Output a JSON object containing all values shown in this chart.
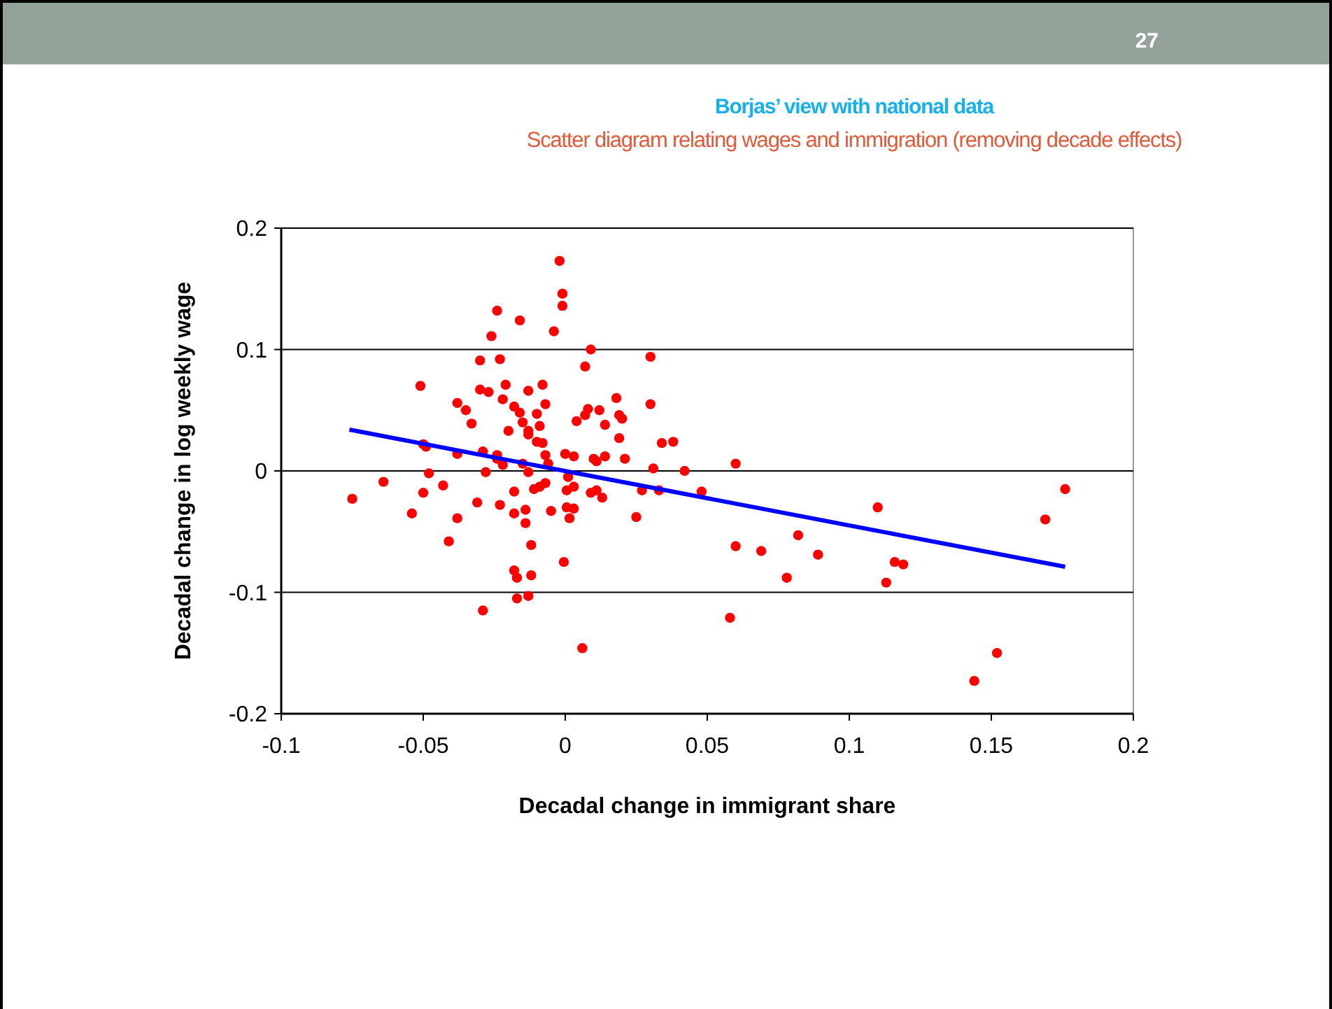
{
  "chart_data": {
    "type": "scatter",
    "title": "Borjas’ view with national data",
    "subtitle": "Scatter diagram relating wages and immigration (removing decade effects)",
    "xlabel": "Decadal change in immigrant share",
    "ylabel": "Decadal change in log weekly wage",
    "annotations": [
      "27"
    ],
    "xlim": [
      -0.1,
      0.2
    ],
    "xticks": [
      -0.1,
      -0.05,
      0,
      0.05,
      0.1,
      0.15,
      0.2
    ],
    "ylim": [
      -0.2,
      0.2
    ],
    "yticks": [
      -0.2,
      -0.1,
      0,
      0.1,
      0.2
    ],
    "grid": "y",
    "series": [
      {
        "type": "scatter",
        "color": "#ff0000",
        "marker": "circle",
        "x": [
          -0.075,
          -0.064,
          -0.054,
          -0.051,
          -0.05,
          -0.05,
          -0.049,
          -0.048,
          -0.043,
          -0.041,
          -0.038,
          -0.038,
          -0.038,
          -0.035,
          -0.033,
          -0.031,
          -0.03,
          -0.03,
          -0.029,
          -0.029,
          -0.028,
          -0.027,
          -0.026,
          -0.024,
          -0.024,
          -0.024,
          -0.023,
          -0.023,
          -0.022,
          -0.022,
          -0.021,
          -0.02,
          -0.018,
          -0.018,
          -0.018,
          -0.018,
          -0.017,
          -0.017,
          -0.016,
          -0.016,
          -0.015,
          -0.015,
          -0.014,
          -0.014,
          -0.013,
          -0.013,
          -0.013,
          -0.013,
          -0.013,
          -0.012,
          -0.012,
          -0.011,
          -0.01,
          -0.01,
          -0.009,
          -0.009,
          -0.008,
          -0.008,
          -0.007,
          -0.007,
          -0.007,
          -0.006,
          -0.005,
          -0.004,
          -0.002,
          -0.001,
          -0.001,
          -0.0005,
          0,
          0.0005,
          0.0005,
          0.001,
          0.0015,
          0.003,
          0.003,
          0.003,
          0.004,
          0.006,
          0.007,
          0.007,
          0.008,
          0.009,
          0.009,
          0.01,
          0.011,
          0.011,
          0.012,
          0.013,
          0.014,
          0.014,
          0.018,
          0.019,
          0.019,
          0.02,
          0.021,
          0.025,
          0.027,
          0.03,
          0.03,
          0.031,
          0.033,
          0.034,
          0.038,
          0.042,
          0.048,
          0.058,
          0.06,
          0.06,
          0.069,
          0.078,
          0.082,
          0.089,
          0.11,
          0.113,
          0.116,
          0.119,
          0.144,
          0.152,
          0.169,
          0.176
        ],
        "values": [
          -0.023,
          -0.009,
          -0.035,
          0.07,
          0.022,
          -0.018,
          0.02,
          -0.002,
          -0.012,
          -0.058,
          0.056,
          0.014,
          -0.039,
          0.05,
          0.039,
          -0.026,
          0.067,
          0.091,
          0.016,
          -0.115,
          -0.001,
          0.065,
          0.111,
          0.132,
          0.013,
          0.01,
          -0.028,
          0.092,
          0.059,
          0.005,
          0.071,
          0.033,
          0.053,
          -0.017,
          -0.035,
          -0.082,
          -0.088,
          -0.105,
          0.124,
          0.048,
          0.006,
          0.04,
          -0.032,
          -0.043,
          -0.103,
          0.033,
          0.03,
          -0.001,
          0.066,
          -0.061,
          -0.086,
          -0.015,
          0.024,
          0.047,
          -0.013,
          0.037,
          0.023,
          0.071,
          0.055,
          -0.01,
          0.013,
          0.006,
          -0.033,
          0.115,
          0.173,
          0.146,
          0.136,
          -0.075,
          0.014,
          -0.016,
          -0.03,
          -0.005,
          -0.039,
          0.012,
          -0.013,
          -0.031,
          0.041,
          -0.146,
          0.086,
          0.046,
          0.051,
          0.1,
          -0.018,
          0.01,
          0.008,
          -0.016,
          0.05,
          -0.022,
          0.038,
          0.012,
          0.06,
          0.046,
          0.027,
          0.043,
          0.01,
          -0.038,
          -0.016,
          0.094,
          0.055,
          0.002,
          -0.016,
          0.023,
          0.024,
          0,
          -0.017,
          -0.121,
          0.006,
          -0.062,
          -0.066,
          -0.088,
          -0.053,
          -0.069,
          -0.03,
          -0.092,
          -0.075,
          -0.077,
          -0.173,
          -0.15,
          -0.04,
          -0.015
        ]
      },
      {
        "type": "line",
        "color": "#0000ff",
        "marker": "none",
        "line_style": "solid",
        "x": [
          -0.076,
          0.176
        ],
        "values": [
          0.034,
          -0.079
        ]
      }
    ]
  }
}
